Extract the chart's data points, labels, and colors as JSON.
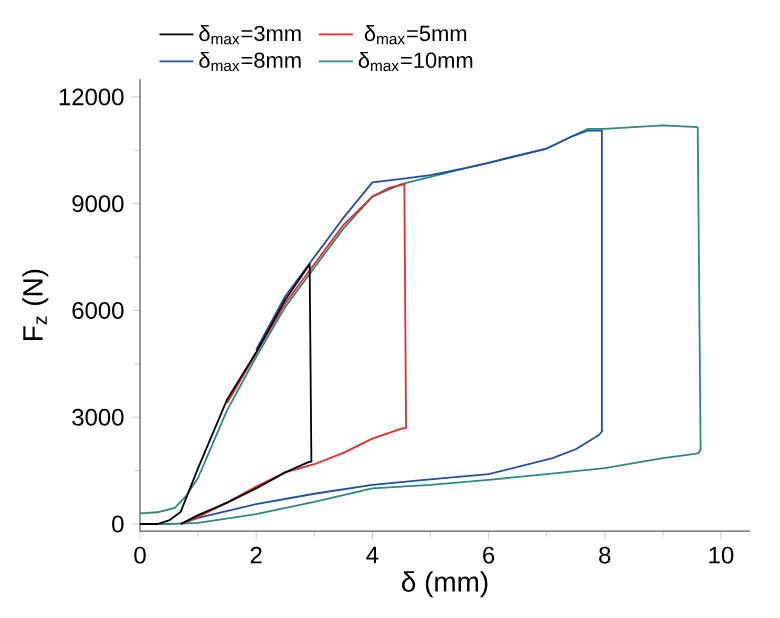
{
  "chart_data": {
    "type": "line",
    "xlabel": "δ (mm)",
    "ylabel": "F$_{z}$ (N)",
    "xlim": [
      0,
      10.5
    ],
    "ylim": [
      -200,
      12500
    ],
    "xticks": [
      0,
      2,
      4,
      6,
      8,
      10
    ],
    "yticks": [
      0,
      3000,
      6000,
      9000,
      12000
    ],
    "grid": false,
    "legend": "top",
    "series": [
      {
        "name": "δ$_{max}$=3mm",
        "color": "#000000",
        "x": [
          0,
          0.3,
          0.5,
          0.7,
          1.0,
          1.5,
          2.0,
          2.5,
          2.92,
          2.95,
          2.9,
          2.5,
          2.0,
          1.5,
          1.0,
          0.7
        ],
        "values": [
          0,
          0,
          100,
          340,
          1570,
          3500,
          4830,
          6300,
          7300,
          1750,
          1740,
          1450,
          1000,
          600,
          250,
          0
        ]
      },
      {
        "name": "δ$_{max}$=5mm",
        "color": "#e8282a",
        "x": [
          1.5,
          2.0,
          2.5,
          3.5,
          4.0,
          4.3,
          4.55,
          4.58,
          4.5,
          4.0,
          3.5,
          3.0,
          2.5,
          2.0,
          1.5,
          1.0,
          0.7
        ],
        "values": [
          3400,
          4800,
          6200,
          8400,
          9200,
          9450,
          9550,
          2700,
          2680,
          2400,
          2000,
          1680,
          1450,
          1050,
          600,
          200,
          0
        ]
      },
      {
        "name": "δ$_{max}$=8mm",
        "color": "#1f4fa8",
        "x": [
          2.0,
          2.5,
          3.5,
          4.0,
          4.5,
          5.0,
          5.6,
          6.0,
          7.0,
          7.45,
          7.7,
          7.95,
          7.95,
          7.9,
          7.5,
          7.1,
          6.0,
          4.9,
          4.0,
          3.0,
          2.0,
          1.0,
          0.7
        ],
        "values": [
          4900,
          6400,
          8600,
          9600,
          9700,
          9800,
          10000,
          10150,
          10550,
          10900,
          11050,
          11050,
          2600,
          2500,
          2100,
          1850,
          1400,
          1240,
          1100,
          850,
          560,
          170,
          0
        ]
      },
      {
        "name": "δ$_{max}$=10mm",
        "color": "#2a8a7e",
        "x": [
          0,
          0.3,
          0.6,
          0.8,
          1.0,
          1.5,
          2.0,
          2.5,
          3.0,
          3.5,
          4.0,
          4.5,
          5.0,
          5.6,
          6.0,
          7.0,
          7.45,
          7.7,
          8.0,
          9.0,
          9.6,
          9.65,
          9.62,
          9.55,
          9.0,
          8.0,
          7.0,
          6.0,
          5.0,
          4.0,
          3.0,
          2.0,
          1.0,
          0.5,
          0
        ],
        "values": [
          300,
          330,
          450,
          800,
          1300,
          3200,
          4700,
          6100,
          7200,
          8300,
          9200,
          9550,
          9750,
          10000,
          10150,
          10550,
          10900,
          11100,
          11100,
          11200,
          11150,
          2100,
          2000,
          1970,
          1850,
          1570,
          1400,
          1240,
          1100,
          1000,
          620,
          280,
          30,
          0,
          0
        ]
      }
    ]
  }
}
